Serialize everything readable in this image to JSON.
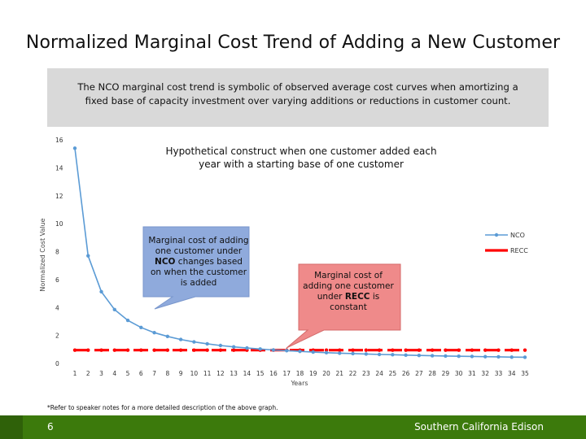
{
  "slide": {
    "title": "Normalized Marginal Cost Trend of Adding a New Customer",
    "summary": "The NCO marginal cost trend is symbolic of observed average cost curves when amortizing a fixed base of capacity investment over varying additions or reductions in customer count.",
    "footnote": "*Refer to speaker notes for a more detailed description of the above graph.",
    "page_number": "6",
    "company": "Southern California Edison"
  },
  "callouts": {
    "nco": {
      "pre": "Marginal cost of adding one customer under ",
      "bold": "NCO",
      "post": " changes based on when the customer is added"
    },
    "recc": {
      "pre": "Marginal cost of adding one customer under ",
      "bold": "RECC",
      "post": " is constant"
    }
  },
  "chart_data": {
    "type": "line",
    "title": "",
    "annotation": "Hypothetical construct when one customer added each year with a starting base of one customer",
    "xlabel": "Years",
    "ylabel": "Normalized Cost Value",
    "ylim": [
      0,
      16
    ],
    "yticks": [
      0,
      2,
      4,
      6,
      8,
      10,
      12,
      14,
      16
    ],
    "x": [
      1,
      2,
      3,
      4,
      5,
      6,
      7,
      8,
      9,
      10,
      11,
      12,
      13,
      14,
      15,
      16,
      17,
      18,
      19,
      20,
      21,
      22,
      23,
      24,
      25,
      26,
      27,
      28,
      29,
      30,
      31,
      32,
      33,
      34,
      35
    ],
    "series": [
      {
        "name": "NCO",
        "color": "#5b9bd5",
        "style": "solid-with-markers",
        "values": [
          15.4,
          7.7,
          5.13,
          3.85,
          3.08,
          2.57,
          2.2,
          1.93,
          1.71,
          1.54,
          1.4,
          1.28,
          1.18,
          1.1,
          1.03,
          0.96,
          0.91,
          0.86,
          0.81,
          0.77,
          0.73,
          0.7,
          0.67,
          0.64,
          0.62,
          0.59,
          0.57,
          0.55,
          0.53,
          0.51,
          0.5,
          0.48,
          0.47,
          0.45,
          0.44
        ]
      },
      {
        "name": "RECC",
        "color": "#ff0000",
        "style": "dashed-with-markers",
        "values": [
          0.95,
          0.95,
          0.95,
          0.95,
          0.95,
          0.95,
          0.95,
          0.95,
          0.95,
          0.95,
          0.95,
          0.95,
          0.95,
          0.95,
          0.95,
          0.95,
          0.95,
          0.95,
          0.95,
          0.95,
          0.95,
          0.95,
          0.95,
          0.95,
          0.95,
          0.95,
          0.95,
          0.95,
          0.95,
          0.95,
          0.95,
          0.95,
          0.95,
          0.95,
          0.95
        ]
      }
    ],
    "legend": "right",
    "grid": false
  }
}
